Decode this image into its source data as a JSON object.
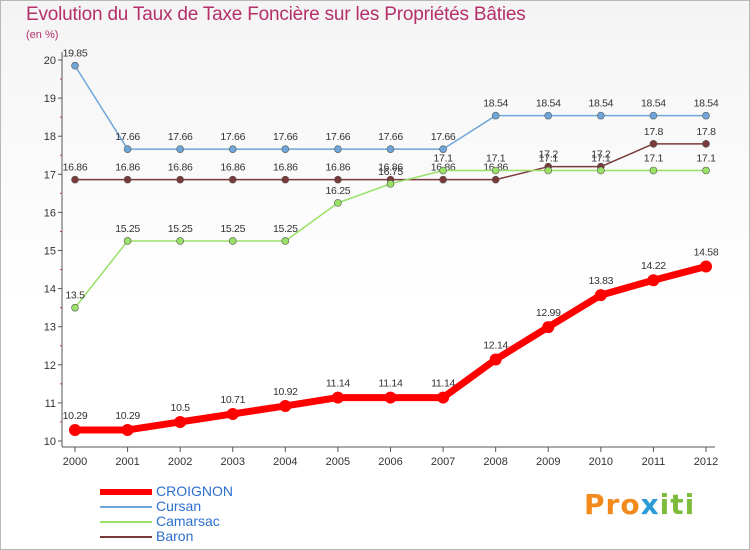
{
  "title": "Evolution du Taux de Taxe Foncière sur les Propriétés Bâties",
  "unit_label": "(en %)",
  "logo": {
    "part1": "Pro",
    "part2": "x",
    "part3": "iti"
  },
  "chart_data": {
    "type": "line",
    "title": "Evolution du Taux de Taxe Foncière sur les Propriétés Bâties",
    "ylabel": "(en %)",
    "xlabel": "",
    "x": [
      "2000",
      "2001",
      "2002",
      "2003",
      "2004",
      "2005",
      "2006",
      "2007",
      "2008",
      "2009",
      "2010",
      "2011",
      "2012"
    ],
    "ylim": [
      10,
      20
    ],
    "yticks": [
      "10",
      "11",
      "12",
      "13",
      "14",
      "15",
      "16",
      "17",
      "18",
      "19",
      "20"
    ],
    "grid": false,
    "legend_position": "bottom-left",
    "series": [
      {
        "name": "CROIGNON",
        "color": "#ff0000",
        "values": [
          10.29,
          10.29,
          10.5,
          10.71,
          10.92,
          11.14,
          11.14,
          11.14,
          12.14,
          12.99,
          13.83,
          14.22,
          14.58
        ],
        "labels": [
          "10.29",
          "10.29",
          "10.5",
          "10.71",
          "10.92",
          "11.14",
          "11.14",
          "11.14",
          "12.14",
          "12.99",
          "13.83",
          "14.22",
          "14.58"
        ]
      },
      {
        "name": "Cursan",
        "color": "#6ea6d9",
        "values": [
          19.85,
          17.66,
          17.66,
          17.66,
          17.66,
          17.66,
          17.66,
          17.66,
          18.54,
          18.54,
          18.54,
          18.54,
          18.54
        ],
        "labels": [
          "19.85",
          "17.66",
          "17.66",
          "17.66",
          "17.66",
          "17.66",
          "17.66",
          "17.66",
          "18.54",
          "18.54",
          "18.54",
          "18.54",
          "18.54"
        ]
      },
      {
        "name": "Camarsac",
        "color": "#99e066",
        "values": [
          13.5,
          15.25,
          15.25,
          15.25,
          15.25,
          16.25,
          16.75,
          17.1,
          17.1,
          17.1,
          17.1,
          17.1,
          17.1
        ],
        "labels": [
          "13.5",
          "15.25",
          "15.25",
          "15.25",
          "15.25",
          "16.25",
          "16.75",
          "17.1",
          "17.1",
          "17.1",
          "17.1",
          "17.1",
          "17.1"
        ]
      },
      {
        "name": "Baron",
        "color": "#7a3a3a",
        "values": [
          16.86,
          16.86,
          16.86,
          16.86,
          16.86,
          16.86,
          16.86,
          16.86,
          16.86,
          17.2,
          17.2,
          17.8,
          17.8
        ],
        "labels": [
          "16.86",
          "16.86",
          "16.86",
          "16.86",
          "16.86",
          "16.86",
          "16.86",
          "16.86",
          "16.86",
          "17.2",
          "17.2",
          "17.8",
          "17.8"
        ]
      }
    ]
  }
}
